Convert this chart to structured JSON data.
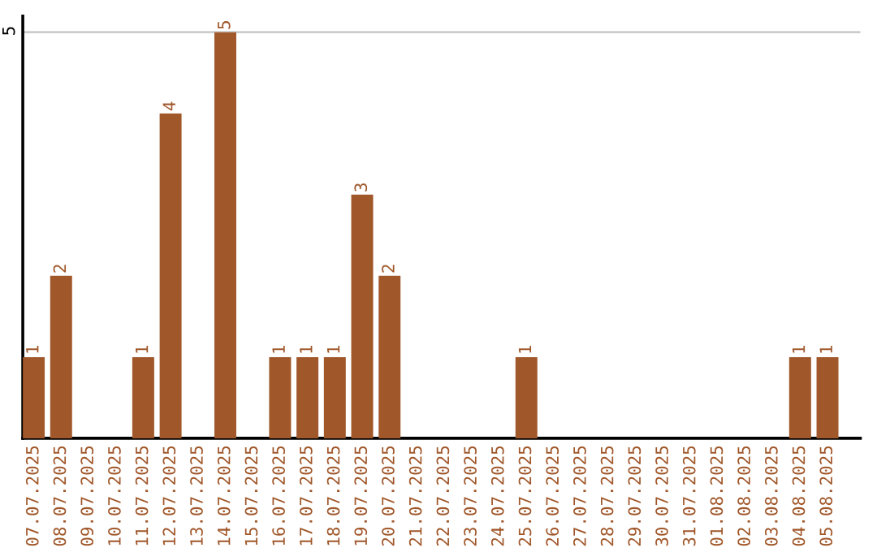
{
  "chart_data": {
    "type": "bar",
    "categories": [
      "07.07.2025",
      "08.07.2025",
      "09.07.2025",
      "10.07.2025",
      "11.07.2025",
      "12.07.2025",
      "13.07.2025",
      "14.07.2025",
      "15.07.2025",
      "16.07.2025",
      "17.07.2025",
      "18.07.2025",
      "19.07.2025",
      "20.07.2025",
      "21.07.2025",
      "22.07.2025",
      "23.07.2025",
      "24.07.2025",
      "25.07.2025",
      "26.07.2025",
      "27.07.2025",
      "28.07.2025",
      "29.07.2025",
      "30.07.2025",
      "31.07.2025",
      "01.08.2025",
      "02.08.2025",
      "03.08.2025",
      "04.08.2025",
      "05.08.2025"
    ],
    "values": [
      1,
      2,
      0,
      0,
      1,
      4,
      0,
      5,
      0,
      1,
      1,
      1,
      3,
      2,
      0,
      0,
      0,
      0,
      1,
      0,
      0,
      0,
      0,
      0,
      0,
      0,
      0,
      0,
      1,
      1
    ],
    "value_labels": [
      "1",
      "2",
      null,
      null,
      "1",
      "4",
      null,
      "5",
      null,
      "1",
      "1",
      "1",
      "3",
      "2",
      null,
      null,
      null,
      null,
      "1",
      null,
      null,
      null,
      null,
      null,
      null,
      null,
      null,
      null,
      "1",
      "1"
    ],
    "color": "#a0572a",
    "ylim": [
      0,
      5.2
    ],
    "yticks": [
      5
    ],
    "grid": "y",
    "legend": false
  }
}
